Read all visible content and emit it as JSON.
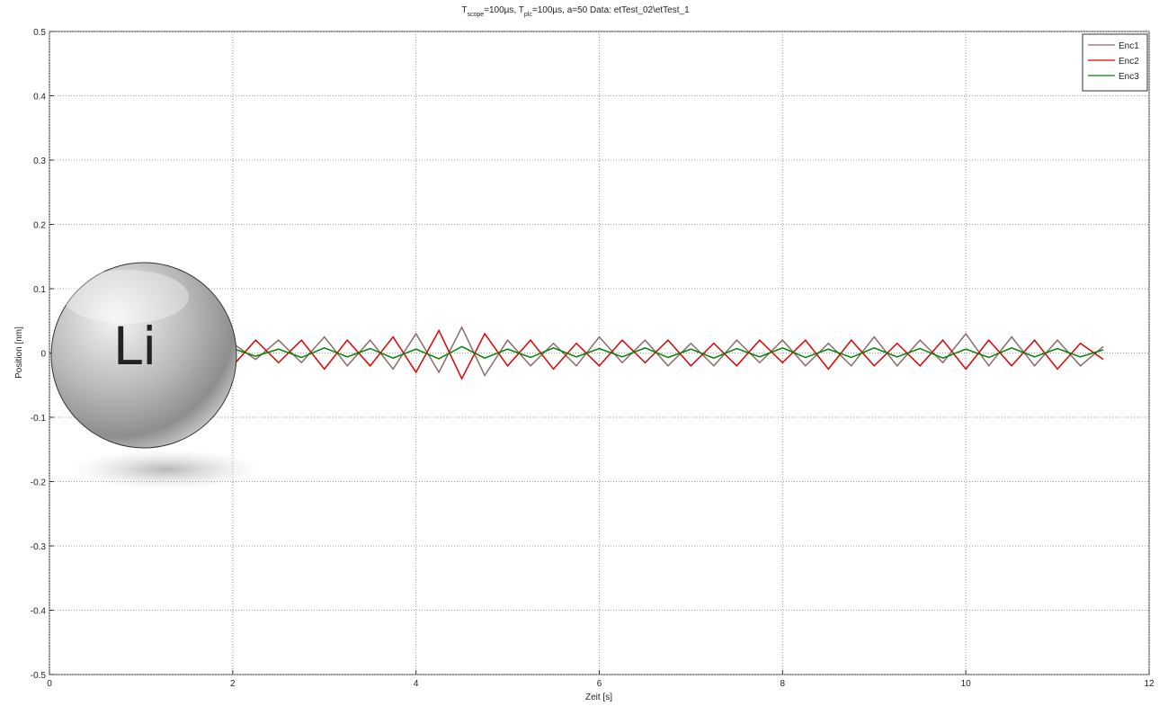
{
  "chart_data": {
    "type": "line",
    "title_segments": [
      {
        "text": "T"
      },
      {
        "text": "scope",
        "sub": true
      },
      {
        "text": "=100µs, T"
      },
      {
        "text": "plc",
        "sub": true
      },
      {
        "text": "=100µs, a=50   Data: etTest_02\\etTest_1"
      }
    ],
    "x_label": "Zeit [s]",
    "y_label": "Position [nm]",
    "xlim": [
      0,
      12
    ],
    "ylim": [
      -0.5,
      0.5
    ],
    "xticks": [
      0,
      2,
      4,
      6,
      8,
      10,
      12
    ],
    "yticks": [
      -0.5,
      -0.4,
      -0.3,
      -0.2,
      -0.1,
      0,
      0.1,
      0.2,
      0.3,
      0.4,
      0.5
    ],
    "grid": true,
    "legend": "upper-right",
    "x": [
      1.5,
      1.75,
      2,
      2.25,
      2.5,
      2.75,
      3,
      3.25,
      3.5,
      3.75,
      4,
      4.25,
      4.5,
      4.75,
      5,
      5.25,
      5.5,
      5.75,
      6,
      6.25,
      6.5,
      6.75,
      7,
      7.25,
      7.5,
      7.75,
      8,
      8.25,
      8.5,
      8.75,
      9,
      9.25,
      9.5,
      9.75,
      10,
      10.25,
      10.5,
      10.75,
      11,
      11.25,
      11.5
    ],
    "series": [
      {
        "name": "Enc1",
        "color": "#8a6a6a",
        "values": [
          0.01,
          -0.02,
          0.015,
          -0.01,
          0.02,
          -0.015,
          0.025,
          -0.02,
          0.02,
          -0.025,
          0.03,
          -0.03,
          0.04,
          -0.035,
          0.02,
          -0.02,
          0.015,
          -0.02,
          0.025,
          -0.015,
          0.02,
          -0.02,
          0.015,
          -0.02,
          0.02,
          -0.015,
          0.02,
          -0.02,
          0.015,
          -0.02,
          0.025,
          -0.02,
          0.02,
          -0.015,
          0.03,
          -0.02,
          0.025,
          -0.02,
          0.02,
          -0.02,
          0.01
        ]
      },
      {
        "name": "Enc2",
        "color": "#e00000",
        "values": [
          -0.01,
          0.015,
          -0.02,
          0.02,
          -0.015,
          0.02,
          -0.025,
          0.02,
          -0.02,
          0.025,
          -0.03,
          0.035,
          -0.04,
          0.03,
          -0.02,
          0.02,
          -0.025,
          0.015,
          -0.02,
          0.02,
          -0.015,
          0.02,
          -0.02,
          0.015,
          -0.02,
          0.02,
          -0.015,
          0.02,
          -0.025,
          0.02,
          -0.02,
          0.015,
          -0.02,
          0.02,
          -0.025,
          0.02,
          -0.02,
          0.02,
          -0.025,
          0.015,
          -0.01
        ]
      },
      {
        "name": "Enc3",
        "color": "#008000",
        "values": [
          0.005,
          -0.006,
          0.007,
          -0.005,
          0.006,
          -0.007,
          0.008,
          -0.006,
          0.007,
          -0.008,
          0.006,
          -0.009,
          0.01,
          -0.008,
          0.006,
          -0.007,
          0.008,
          -0.006,
          0.007,
          -0.006,
          0.008,
          -0.007,
          0.006,
          -0.008,
          0.007,
          -0.006,
          0.008,
          -0.007,
          0.006,
          -0.007,
          0.008,
          -0.006,
          0.007,
          -0.008,
          0.006,
          -0.007,
          0.008,
          -0.006,
          0.007,
          -0.006,
          0.005
        ]
      }
    ]
  },
  "logo_text": "Li"
}
